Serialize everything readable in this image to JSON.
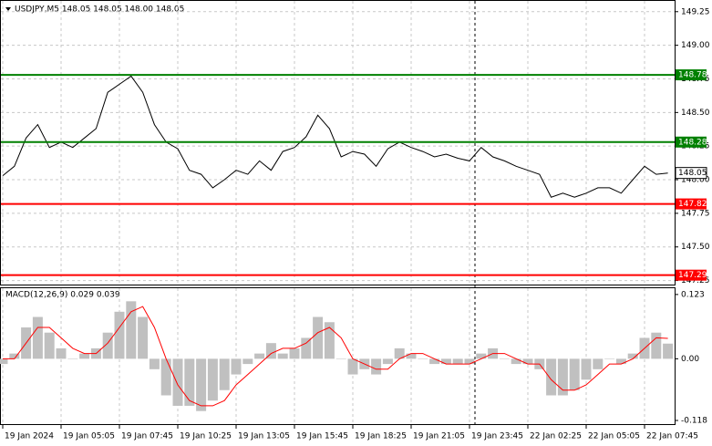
{
  "chart_data": [
    {
      "type": "line",
      "title": "USDJPY,M5  148.05 148.05 148.00 148.05",
      "categories": [
        "19 Jan 2024",
        null,
        null,
        null,
        null,
        "19 Jan 05:05",
        null,
        null,
        null,
        null,
        "19 Jan 07:45",
        null,
        null,
        null,
        null,
        "19 Jan 10:25",
        null,
        null,
        null,
        null,
        "19 Jan 13:05",
        null,
        null,
        null,
        null,
        "19 Jan 15:45",
        null,
        null,
        null,
        null,
        "19 Jan 18:25",
        null,
        null,
        null,
        null,
        "19 Jan 21:05",
        null,
        null,
        null,
        null,
        "19 Jan 23:45",
        null,
        null,
        null,
        null,
        "22 Jan 02:25",
        null,
        null,
        null,
        null,
        "22 Jan 05:05",
        null,
        null,
        null,
        null,
        "22 Jan 07:45",
        null,
        null
      ],
      "values": [
        148.03,
        148.1,
        148.31,
        148.41,
        148.24,
        148.28,
        148.24,
        148.31,
        148.38,
        148.65,
        148.71,
        148.77,
        148.65,
        148.41,
        148.28,
        148.23,
        148.07,
        148.04,
        147.94,
        148.0,
        148.07,
        148.04,
        148.14,
        148.07,
        148.21,
        148.24,
        148.32,
        148.48,
        148.38,
        148.17,
        148.21,
        148.19,
        148.1,
        148.23,
        148.28,
        148.24,
        148.21,
        148.17,
        148.19,
        148.16,
        148.14,
        148.24,
        148.17,
        148.14,
        148.1,
        148.07,
        148.04,
        147.87,
        147.9,
        147.87,
        147.9,
        147.94,
        147.94,
        147.9,
        148.0,
        148.1,
        148.04,
        148.05
      ],
      "color": "#000000",
      "ylim": [
        147.22,
        149.33
      ],
      "yticks": [
        {
          "value": 149.25,
          "label": "149.25"
        },
        {
          "value": 149,
          "label": "149.00"
        },
        {
          "value": 148.75,
          "label": "148.75"
        },
        {
          "value": 148.5,
          "label": "148.50"
        },
        {
          "value": 148.25,
          "label": "148.25"
        },
        {
          "value": 148,
          "label": "148.00"
        },
        {
          "value": 147.75,
          "label": "147.75"
        },
        {
          "value": 147.5,
          "label": "147.50"
        },
        {
          "value": 147.25,
          "label": "147.25"
        }
      ],
      "grid": true,
      "levels": [
        148.78,
        148.28,
        147.82,
        147.29
      ],
      "level_colors": [
        "#008000",
        "#008000",
        "#ff0000",
        "#ff0000"
      ],
      "last": 148.05
    },
    {
      "type": "macd",
      "title": "MACD(12,26,9) 0.029 0.039",
      "values": [
        -0.01,
        0.01,
        0.06,
        0.08,
        0.05,
        0.02,
        0,
        0.01,
        0.02,
        0.05,
        0.09,
        0.11,
        0.08,
        -0.02,
        -0.07,
        -0.09,
        -0.09,
        -0.1,
        -0.08,
        -0.06,
        -0.03,
        -0.01,
        0.01,
        0.03,
        0.01,
        0.02,
        0.04,
        0.08,
        0.07,
        0,
        -0.03,
        -0.02,
        -0.03,
        -0.01,
        0.02,
        0.01,
        0,
        -0.01,
        -0.01,
        -0.01,
        -0.01,
        0.01,
        0.02,
        0,
        -0.01,
        -0.01,
        -0.02,
        -0.07,
        -0.07,
        -0.06,
        -0.04,
        -0.02,
        0,
        -0.01,
        0.01,
        0.04,
        0.05,
        0.029
      ],
      "signal": [
        0,
        0,
        0.03,
        0.06,
        0.06,
        0.04,
        0.02,
        0.01,
        0.01,
        0.03,
        0.06,
        0.09,
        0.1,
        0.06,
        0,
        -0.05,
        -0.08,
        -0.09,
        -0.09,
        -0.08,
        -0.05,
        -0.03,
        -0.01,
        0.01,
        0.02,
        0.02,
        0.03,
        0.05,
        0.06,
        0.04,
        0,
        -0.01,
        -0.02,
        -0.02,
        0,
        0.01,
        0.01,
        0,
        -0.01,
        -0.01,
        -0.01,
        0,
        0.01,
        0.01,
        0,
        -0.01,
        -0.01,
        -0.04,
        -0.06,
        -0.06,
        -0.05,
        -0.03,
        -0.01,
        -0.01,
        0,
        0.02,
        0.04,
        0.039
      ],
      "color": "#c0c0c0",
      "signal_color": "#ff0000",
      "ylim": [
        -0.125,
        0.135
      ],
      "yticks": [
        0.123,
        {
          "value": 0,
          "label": "0.00"
        },
        -0.118
      ]
    }
  ]
}
